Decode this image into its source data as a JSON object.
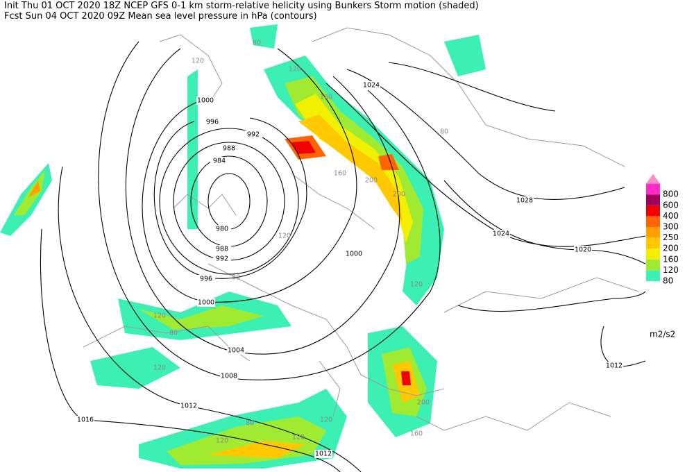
{
  "header": {
    "line1": "Init  Thu 01 OCT 2020 18Z  NCEP GFS 0-1 km storm-relative helicity using Bunkers Storm motion (shaded)",
    "line2": "Fcst Sun 04 OCT 2020 09Z  Mean sea level pressure in hPa (contours)"
  },
  "legend": {
    "levels": [
      80,
      120,
      160,
      200,
      250,
      300,
      400,
      600,
      800
    ],
    "colors": [
      "#3cf0b4",
      "#a0eb32",
      "#f0f000",
      "#ffc800",
      "#ffa000",
      "#ff6400",
      "#f00000",
      "#a0005a",
      "#ff28c8"
    ],
    "arrow_color": "#ff8cc8",
    "unit": "m2/s2"
  },
  "contour_labels": [
    1000,
    996,
    992,
    988,
    984,
    980,
    988,
    992,
    996,
    1000,
    1000,
    1004,
    1008,
    1012,
    1016,
    1012,
    1024,
    1028,
    1024,
    1020,
    1012
  ],
  "shading_labels": [
    80,
    120,
    120,
    160,
    200,
    200,
    160,
    120,
    120,
    80,
    120,
    80,
    120,
    120,
    80,
    120,
    200,
    160,
    120,
    80
  ]
}
